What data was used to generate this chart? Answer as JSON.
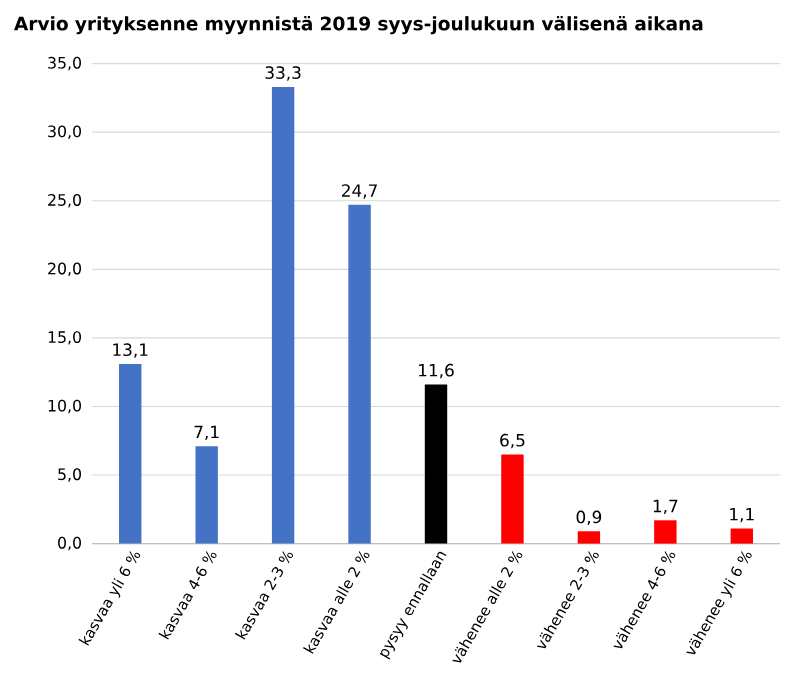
{
  "chart_data": {
    "type": "bar",
    "title": "Arvio  yrityksenne myynnistä 2019 syys-joulukuun välisenä aikana",
    "categories": [
      "kasvaa yli 6 %",
      "kasvaa 4-6 %",
      "kasvaa 2-3 %",
      "kasvaa alle 2 %",
      "pysyy ennallaan",
      "vähenee alle 2 %",
      "vähenee 2-3 %",
      "vähenee 4-6 %",
      "vähenee yli 6 %"
    ],
    "values": [
      13.1,
      7.1,
      33.3,
      24.7,
      11.6,
      6.5,
      0.9,
      1.7,
      1.1
    ],
    "value_labels": [
      "13,1",
      "7,1",
      "33,3",
      "24,7",
      "11,6",
      "6,5",
      "0,9",
      "1,7",
      "1,1"
    ],
    "colors": [
      "#4472c4",
      "#4472c4",
      "#4472c4",
      "#4472c4",
      "#000000",
      "#ff0000",
      "#ff0000",
      "#ff0000",
      "#ff0000"
    ],
    "ylim": [
      0,
      35
    ],
    "yticks": [
      {
        "value": 0,
        "label": "0,0"
      },
      {
        "value": 5,
        "label": "5,0"
      },
      {
        "value": 10,
        "label": "10,0"
      },
      {
        "value": 15,
        "label": "15,0"
      },
      {
        "value": 20,
        "label": "20,0"
      },
      {
        "value": 25,
        "label": "25,0"
      },
      {
        "value": 30,
        "label": "30,0"
      },
      {
        "value": 35,
        "label": "35,0"
      }
    ],
    "grid": "y"
  }
}
